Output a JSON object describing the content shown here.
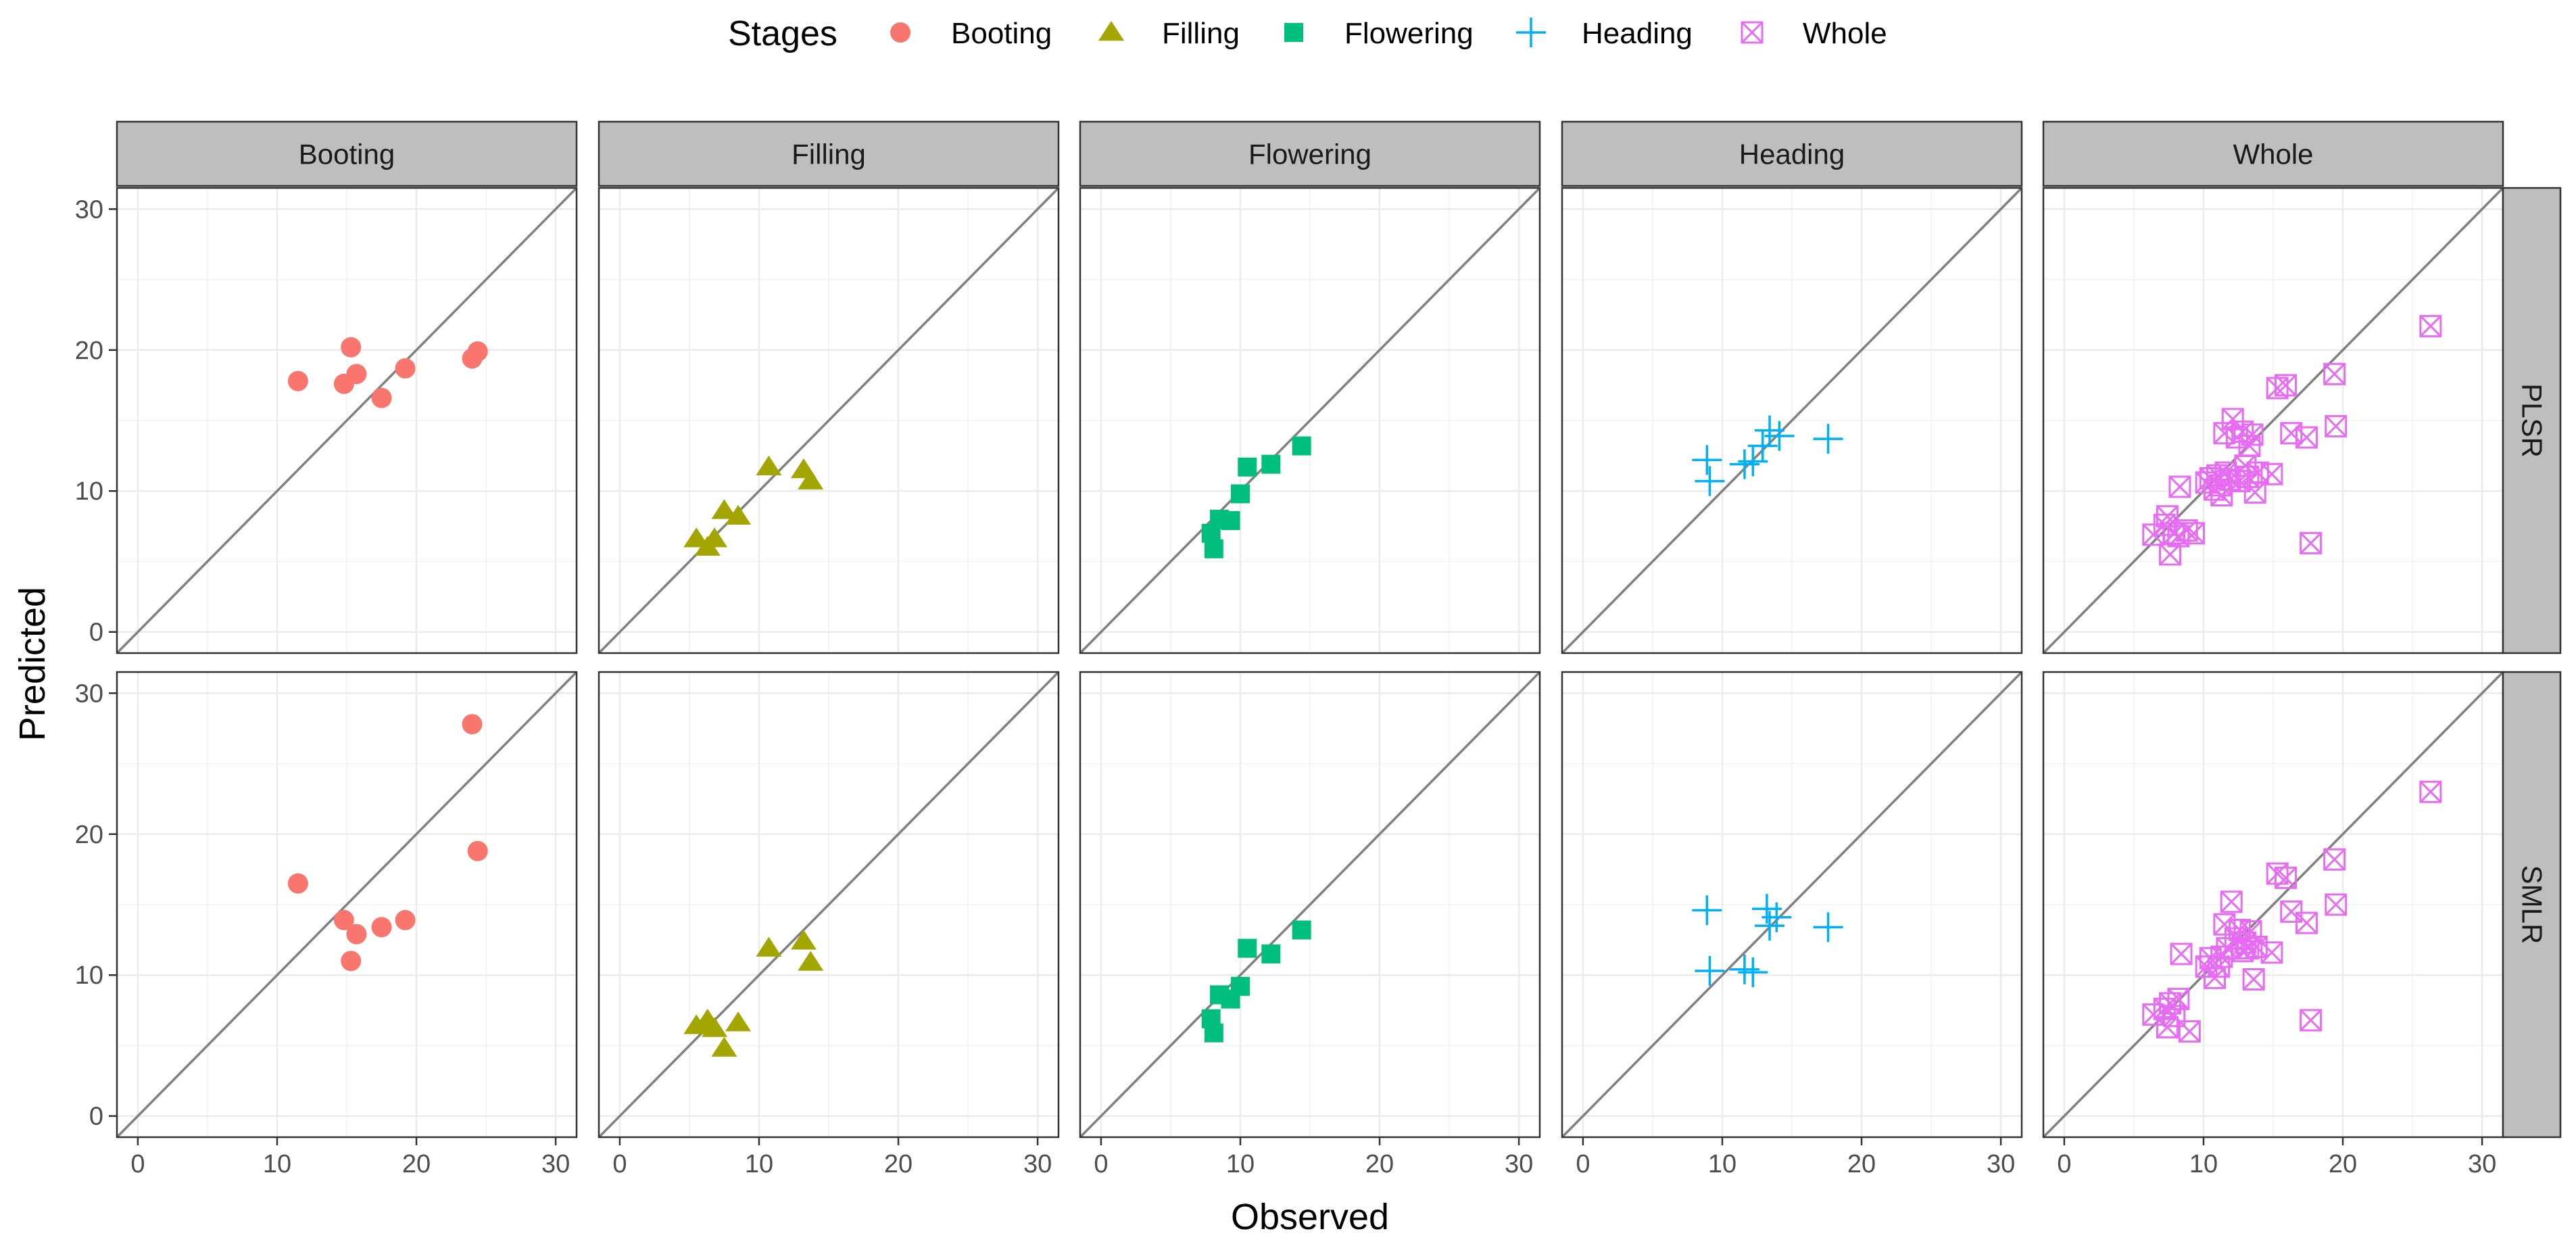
{
  "chart_data": {
    "type": "scatter",
    "title": "",
    "xlabel": "Observed",
    "ylabel": "Predicted",
    "xlim": [
      -1.5,
      31.5
    ],
    "ylim": [
      -1.5,
      31.5
    ],
    "ticks": [
      0,
      10,
      20,
      30
    ],
    "tick_labels": [
      "0",
      "10",
      "20",
      "30"
    ],
    "grid": true,
    "identity_line": true,
    "legend": {
      "title": "Stages",
      "position": "top",
      "entries": [
        {
          "name": "Booting",
          "marker": "circle",
          "color": "#F8766D"
        },
        {
          "name": "Filling",
          "marker": "triangle",
          "color": "#A3A500"
        },
        {
          "name": "Flowering",
          "marker": "square",
          "color": "#00BF7D"
        },
        {
          "name": "Heading",
          "marker": "plus",
          "color": "#00B0F6"
        },
        {
          "name": "Whole",
          "marker": "square-x",
          "color": "#E76BF3"
        }
      ]
    },
    "columns": [
      "Booting",
      "Filling",
      "Flowering",
      "Heading",
      "Whole"
    ],
    "rows": [
      "PLSR",
      "SMLR"
    ],
    "panels": [
      {
        "model": "PLSR",
        "stage": "Booting",
        "points": [
          [
            11.5,
            17.8
          ],
          [
            14.8,
            17.6
          ],
          [
            15.3,
            20.2
          ],
          [
            15.7,
            18.3
          ],
          [
            17.5,
            16.6
          ],
          [
            19.2,
            18.7
          ],
          [
            24.0,
            19.4
          ],
          [
            24.4,
            19.9
          ]
        ]
      },
      {
        "model": "PLSR",
        "stage": "Filling",
        "points": [
          [
            5.5,
            6.6
          ],
          [
            6.3,
            6.0
          ],
          [
            6.8,
            6.6
          ],
          [
            7.5,
            8.6
          ],
          [
            8.5,
            8.2
          ],
          [
            10.7,
            11.7
          ],
          [
            13.2,
            11.5
          ],
          [
            13.7,
            10.7
          ]
        ]
      },
      {
        "model": "PLSR",
        "stage": "Flowering",
        "points": [
          [
            7.9,
            7.0
          ],
          [
            8.1,
            5.9
          ],
          [
            8.5,
            8.0
          ],
          [
            9.3,
            7.9
          ],
          [
            10.0,
            9.8
          ],
          [
            10.5,
            11.7
          ],
          [
            12.2,
            11.9
          ],
          [
            14.4,
            13.2
          ]
        ]
      },
      {
        "model": "PLSR",
        "stage": "Heading",
        "points": [
          [
            8.9,
            12.2
          ],
          [
            9.1,
            10.7
          ],
          [
            11.6,
            11.9
          ],
          [
            12.2,
            12.1
          ],
          [
            12.9,
            13.2
          ],
          [
            13.4,
            14.3
          ],
          [
            14.1,
            13.9
          ],
          [
            17.6,
            13.7
          ]
        ]
      },
      {
        "model": "PLSR",
        "stage": "Whole",
        "points": [
          [
            6.4,
            6.9
          ],
          [
            7.2,
            7.6
          ],
          [
            7.4,
            8.2
          ],
          [
            7.6,
            5.5
          ],
          [
            7.9,
            7.0
          ],
          [
            8.2,
            6.8
          ],
          [
            8.3,
            10.3
          ],
          [
            8.8,
            7.2
          ],
          [
            9.3,
            7.0
          ],
          [
            10.2,
            10.6
          ],
          [
            10.5,
            10.9
          ],
          [
            10.8,
            10.1
          ],
          [
            11.0,
            11.1
          ],
          [
            11.2,
            10.4
          ],
          [
            11.3,
            9.7
          ],
          [
            11.5,
            14.1
          ],
          [
            11.6,
            11.3
          ],
          [
            11.9,
            10.8
          ],
          [
            12.1,
            15.1
          ],
          [
            12.4,
            13.8
          ],
          [
            12.6,
            10.7
          ],
          [
            12.8,
            14.2
          ],
          [
            13.0,
            11.8
          ],
          [
            13.2,
            11.0
          ],
          [
            13.3,
            13.2
          ],
          [
            13.5,
            14.0
          ],
          [
            13.7,
            9.9
          ],
          [
            13.9,
            11.3
          ],
          [
            14.9,
            11.2
          ],
          [
            15.3,
            17.3
          ],
          [
            15.9,
            17.5
          ],
          [
            16.3,
            14.1
          ],
          [
            17.4,
            13.8
          ],
          [
            17.7,
            6.3
          ],
          [
            19.4,
            18.3
          ],
          [
            19.5,
            14.6
          ],
          [
            26.3,
            21.7
          ]
        ]
      },
      {
        "model": "SMLR",
        "stage": "Booting",
        "points": [
          [
            11.5,
            16.5
          ],
          [
            14.8,
            13.9
          ],
          [
            15.3,
            11.0
          ],
          [
            15.7,
            12.9
          ],
          [
            17.5,
            13.4
          ],
          [
            19.2,
            13.9
          ],
          [
            24.0,
            27.8
          ],
          [
            24.4,
            18.8
          ]
        ]
      },
      {
        "model": "SMLR",
        "stage": "Filling",
        "points": [
          [
            5.5,
            6.4
          ],
          [
            6.3,
            6.8
          ],
          [
            6.8,
            6.2
          ],
          [
            7.5,
            4.8
          ],
          [
            8.5,
            6.6
          ],
          [
            10.7,
            11.9
          ],
          [
            13.2,
            12.4
          ],
          [
            13.7,
            10.9
          ]
        ]
      },
      {
        "model": "SMLR",
        "stage": "Flowering",
        "points": [
          [
            7.9,
            6.9
          ],
          [
            8.1,
            5.9
          ],
          [
            8.5,
            8.6
          ],
          [
            9.3,
            8.3
          ],
          [
            10.0,
            9.2
          ],
          [
            10.5,
            11.9
          ],
          [
            12.2,
            11.5
          ],
          [
            14.4,
            13.2
          ]
        ]
      },
      {
        "model": "SMLR",
        "stage": "Heading",
        "points": [
          [
            8.9,
            14.6
          ],
          [
            9.1,
            10.3
          ],
          [
            11.6,
            10.4
          ],
          [
            12.2,
            10.2
          ],
          [
            13.2,
            14.7
          ],
          [
            13.4,
            13.5
          ],
          [
            13.9,
            14.1
          ],
          [
            17.6,
            13.4
          ]
        ]
      },
      {
        "model": "SMLR",
        "stage": "Whole",
        "points": [
          [
            6.4,
            7.2
          ],
          [
            7.2,
            7.6
          ],
          [
            7.4,
            6.3
          ],
          [
            7.6,
            8.0
          ],
          [
            7.9,
            7.1
          ],
          [
            8.2,
            8.3
          ],
          [
            8.4,
            11.5
          ],
          [
            9.0,
            6.0
          ],
          [
            10.2,
            10.6
          ],
          [
            10.5,
            11.2
          ],
          [
            10.8,
            9.8
          ],
          [
            11.1,
            10.6
          ],
          [
            11.3,
            11.3
          ],
          [
            11.5,
            13.6
          ],
          [
            11.7,
            11.9
          ],
          [
            12.0,
            15.2
          ],
          [
            12.3,
            12.6
          ],
          [
            12.6,
            13.2
          ],
          [
            12.8,
            11.7
          ],
          [
            13.0,
            12.3
          ],
          [
            13.2,
            11.9
          ],
          [
            13.4,
            13.1
          ],
          [
            13.6,
            9.7
          ],
          [
            13.8,
            12.0
          ],
          [
            14.9,
            11.6
          ],
          [
            15.3,
            17.2
          ],
          [
            15.9,
            16.9
          ],
          [
            16.3,
            14.5
          ],
          [
            17.4,
            13.7
          ],
          [
            17.7,
            6.8
          ],
          [
            19.4,
            18.2
          ],
          [
            19.5,
            15.0
          ],
          [
            26.3,
            23.0
          ]
        ]
      }
    ]
  }
}
